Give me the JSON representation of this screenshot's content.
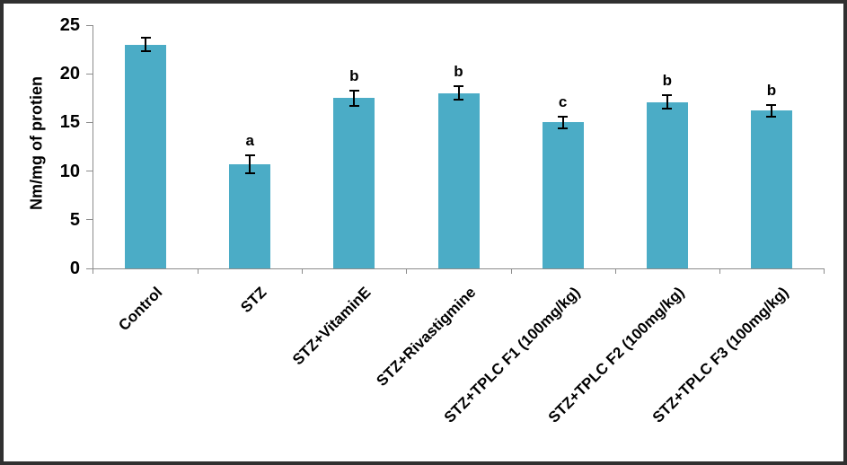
{
  "chart_data": {
    "type": "bar",
    "title": "",
    "ylabel": "Nm/mg of protien",
    "xlabel": "",
    "categories": [
      "Control",
      "STZ",
      "STZ+VitaminE",
      "STZ+Rivastigmine",
      "STZ+TPLC F1 (100mg/kg)",
      "STZ+TPLC F2 (100mg/kg)",
      "STZ+TPLC F3 (100mg/kg)"
    ],
    "values": [
      23.0,
      10.7,
      17.5,
      18.0,
      15.0,
      17.1,
      16.2
    ],
    "errors": [
      0.7,
      0.9,
      0.8,
      0.7,
      0.6,
      0.7,
      0.6
    ],
    "sig_letters": [
      "",
      "a",
      "b",
      "b",
      "c",
      "b",
      "b"
    ],
    "ylim": [
      0,
      25
    ],
    "yticks": [
      0,
      5,
      10,
      15,
      20,
      25
    ],
    "grid": false,
    "legend": false,
    "colors": {
      "bar": "#4BACC6",
      "error_bar": "#000000",
      "axis": "#8C8C8C",
      "text": "#000000",
      "frame_border": "#303030"
    }
  }
}
